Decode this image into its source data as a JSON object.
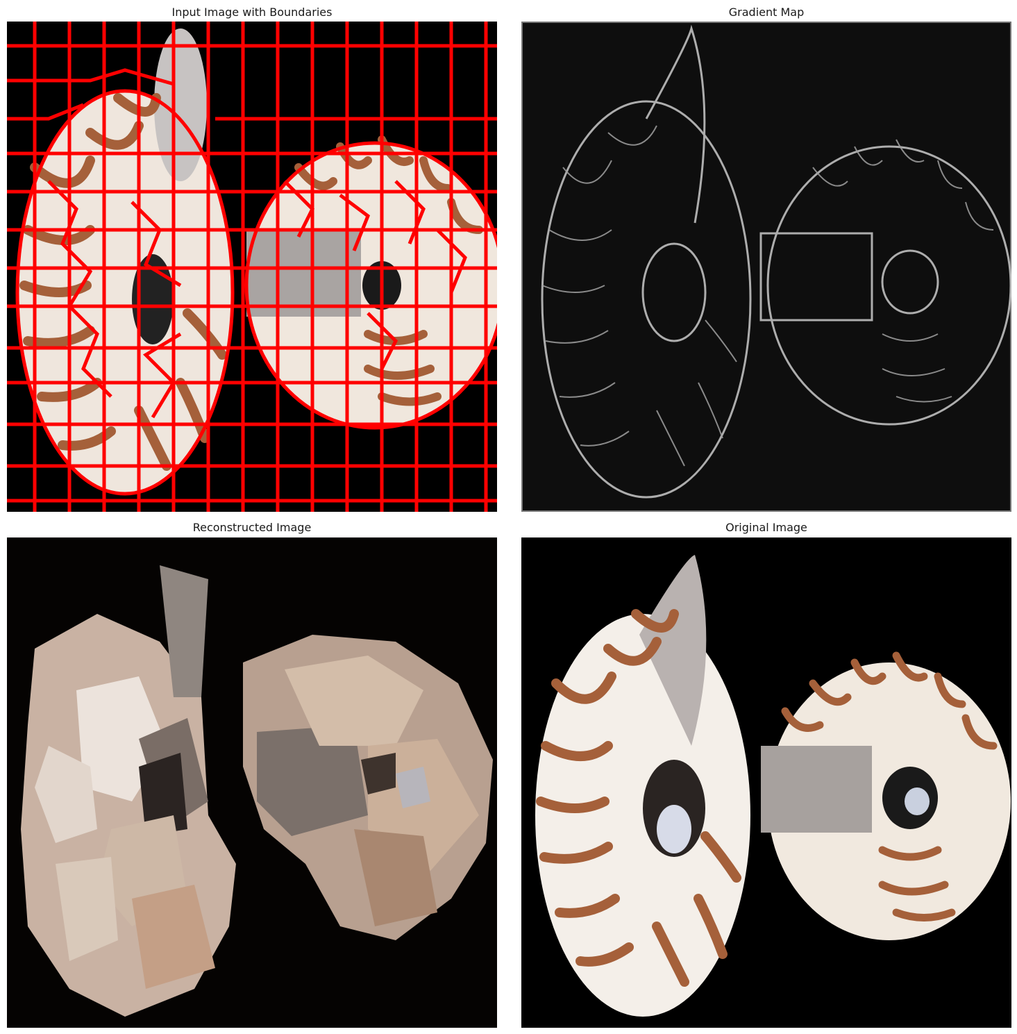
{
  "figure": {
    "panels": [
      {
        "title": "Input Image with Boundaries",
        "content": "segmented nautilus shells with superpixel boundaries"
      },
      {
        "title": "Gradient Map",
        "content": "edge magnitude of nautilus shells"
      },
      {
        "title": "Reconstructed Image",
        "content": "superpixel mean-color reconstruction"
      },
      {
        "title": "Original Image",
        "content": "two nautilus shells on black background"
      }
    ],
    "colors": {
      "boundary": "#ff0000",
      "background": "#000000",
      "shell_white": "#f4efe9",
      "shell_stripe": "#a5603a",
      "gradient_edge": "#bfbfbf",
      "gradient_bg": "#0e0e0e"
    }
  }
}
